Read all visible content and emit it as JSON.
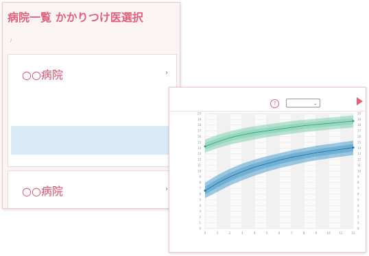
{
  "list_screen": {
    "title": "病院一覧 かかりつけ医選択",
    "breadcrumb": [
      "",
      ""
    ],
    "hospitals": [
      {
        "name": "○○病院",
        "address": "",
        "hours": "",
        "tel_label": "",
        "tel_number": "",
        "notice": [
          "",
          ""
        ]
      },
      {
        "name": "○○病院",
        "hours": ""
      }
    ]
  },
  "chart_screen": {
    "title": "",
    "help_glyph": "?",
    "select_value": "",
    "colors": {
      "accent": "#e0607a",
      "band_upper": "#7fd0b0",
      "band_lower": "#4f9fcc",
      "line_upper": "#2f9f7a",
      "line_lower": "#246a9a"
    }
  },
  "chart_data": {
    "type": "area",
    "title": "",
    "xlabel": "",
    "ylabel": "",
    "x_units_label": "",
    "xlim": [
      0,
      12
    ],
    "x_ticks": [
      "0",
      "1",
      "2",
      "3",
      "4",
      "5",
      "6",
      "7",
      "8",
      "9",
      "10",
      "11",
      "12"
    ],
    "ylim_left": [
      0,
      20
    ],
    "ylim_right": [
      0,
      20
    ],
    "grid": true,
    "series": [
      {
        "x": [
          0,
          1,
          2,
          3,
          4,
          5,
          6,
          7,
          8,
          9,
          10,
          11,
          12
        ],
        "lower": [
          13.2,
          14.0,
          14.6,
          15.1,
          15.5,
          15.9,
          16.2,
          16.5,
          16.8,
          17.0,
          17.2,
          17.4,
          17.6
        ],
        "median": [
          14.3,
          15.1,
          15.8,
          16.3,
          16.7,
          17.0,
          17.3,
          17.6,
          17.9,
          18.1,
          18.3,
          18.5,
          18.7
        ],
        "upper": [
          15.5,
          16.3,
          16.9,
          17.4,
          17.8,
          18.1,
          18.4,
          18.7,
          18.9,
          19.1,
          19.3,
          19.5,
          19.7
        ]
      },
      {
        "x": [
          0,
          1,
          2,
          3,
          4,
          5,
          6,
          7,
          8,
          9,
          10,
          11,
          12
        ],
        "lower": [
          5.3,
          6.4,
          7.5,
          8.4,
          9.2,
          9.9,
          10.5,
          11.0,
          11.5,
          11.9,
          12.2,
          12.5,
          12.8
        ],
        "median": [
          6.6,
          7.9,
          9.0,
          9.9,
          10.7,
          11.3,
          11.9,
          12.4,
          12.8,
          13.2,
          13.5,
          13.8,
          14.1
        ],
        "upper": [
          8.0,
          9.3,
          10.4,
          11.3,
          12.0,
          12.6,
          13.1,
          13.6,
          14.0,
          14.4,
          14.7,
          15.0,
          15.3
        ]
      }
    ]
  }
}
